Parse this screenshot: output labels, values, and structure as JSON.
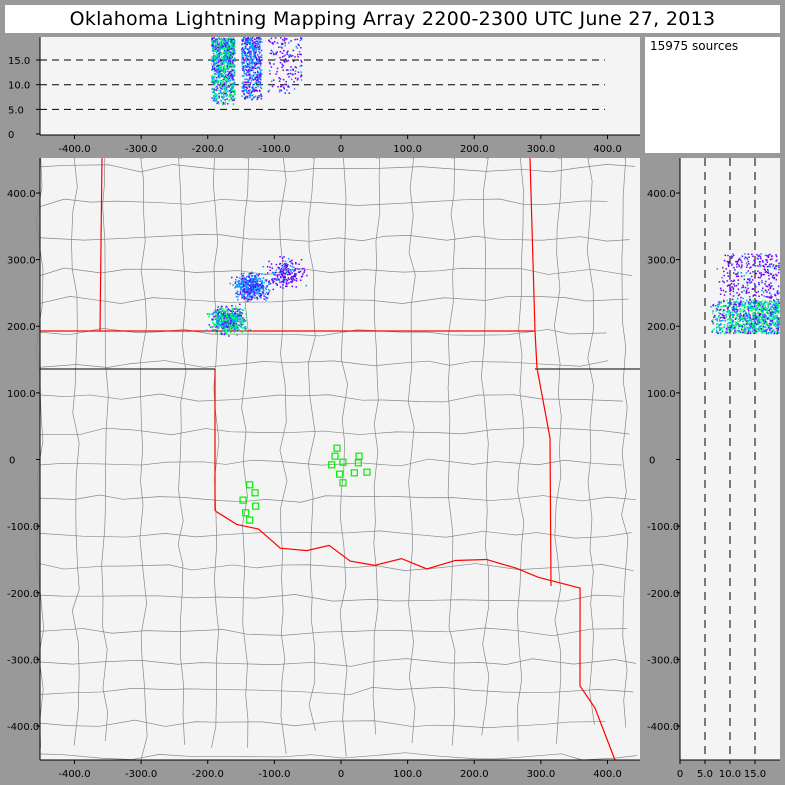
{
  "title": "Oklahoma Lightning Mapping Array   2200-2300 UTC  June 27, 2013",
  "source_count": "15975 sources",
  "colors": {
    "background": "#999999",
    "plot_bg": "#f4f4f4",
    "state_border": "#ff0000",
    "county_line": "#888888",
    "station": "#00ee00",
    "density_low": "#6600ff",
    "density_mid": "#0099ff",
    "density_high": "#00ff66"
  },
  "chart_data": [
    {
      "type": "scatter",
      "name_role": "altitude-vs-east-west",
      "xlim": [
        -450,
        450
      ],
      "ylim": [
        0,
        19.7
      ],
      "x_ticks": [
        "-400.0",
        "-300.0",
        "-200.0",
        "-100.0",
        "0",
        "100.0",
        "200.0",
        "300.0",
        "400.0"
      ],
      "y_ticks": [
        "0",
        "5.0",
        "10.0",
        "15.0"
      ],
      "dashed_levels": [
        5,
        10,
        15
      ],
      "clusters": [
        {
          "x_range": [
            -195,
            -160
          ],
          "alt_range": [
            6,
            19.7
          ],
          "density": "high"
        },
        {
          "x_range": [
            -150,
            -120
          ],
          "alt_range": [
            7,
            19.7
          ],
          "density": "mid"
        },
        {
          "x_range": [
            -110,
            -60
          ],
          "alt_range": [
            8,
            19.7
          ],
          "density": "low"
        }
      ]
    },
    {
      "type": "scatter",
      "name_role": "plan-view-map",
      "xlim": [
        -452,
        448
      ],
      "ylim": [
        -452,
        450
      ],
      "x_ticks": [
        "-400.0",
        "-300.0",
        "-200.0",
        "-100.0",
        "0",
        "100.0",
        "200.0",
        "300.0",
        "400.0"
      ],
      "y_ticks": [
        "400.0",
        "300.0",
        "200.0",
        "100.0",
        "0",
        "-100.0",
        "-200.0",
        "-300.0",
        "-400.0"
      ],
      "clusters": [
        {
          "center": [
            -170,
            210
          ],
          "spread": [
            20,
            15
          ],
          "density": "high"
        },
        {
          "center": [
            -135,
            260
          ],
          "spread": [
            20,
            15
          ],
          "density": "mid"
        },
        {
          "center": [
            -85,
            280
          ],
          "spread": [
            20,
            18
          ],
          "density": "low"
        }
      ],
      "stations": [
        [
          -6,
          17
        ],
        [
          -9,
          5
        ],
        [
          3,
          -4
        ],
        [
          -14,
          -8
        ],
        [
          27,
          5
        ],
        [
          26,
          -5
        ],
        [
          39,
          -19
        ],
        [
          20,
          -20
        ],
        [
          -2,
          -22
        ],
        [
          3,
          -35
        ],
        [
          -137,
          -38
        ],
        [
          -129,
          -50
        ],
        [
          -147,
          -61
        ],
        [
          -128,
          -70
        ],
        [
          -143,
          -80
        ],
        [
          -137,
          -91
        ]
      ]
    },
    {
      "type": "scatter",
      "name_role": "north-south-vs-altitude",
      "xlim": [
        0,
        19.7
      ],
      "ylim": [
        -452,
        450
      ],
      "x_ticks": [
        "0",
        "5.0",
        "10.0",
        "15.0"
      ],
      "y_ticks": [
        "400.0",
        "300.0",
        "200.0",
        "100.0",
        "0",
        "-100.0",
        "-200.0",
        "-300.0",
        "-400.0"
      ],
      "dashed_levels": [
        5,
        10,
        15
      ],
      "clusters": [
        {
          "alt_range": [
            6,
            19.7
          ],
          "y_range": [
            190,
            240
          ],
          "density": "high"
        },
        {
          "alt_range": [
            7,
            19.7
          ],
          "y_range": [
            240,
            310
          ],
          "density": "low"
        }
      ]
    }
  ]
}
